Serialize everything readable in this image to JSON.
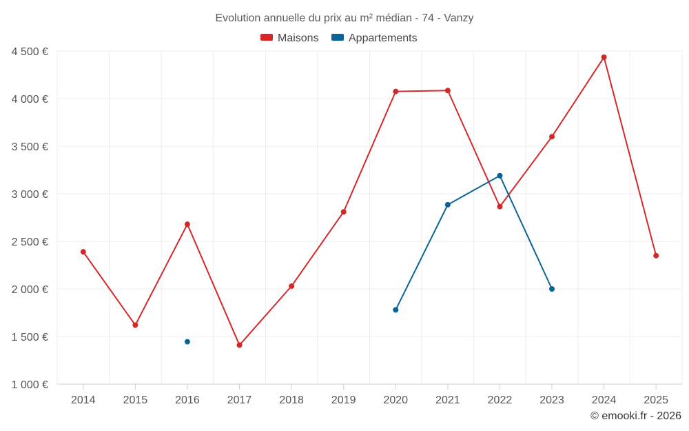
{
  "chart_data": {
    "type": "line",
    "title": "Evolution annuelle du prix au m² médian - 74 - Vanzy",
    "categories": [
      "2014",
      "2015",
      "2016",
      "2017",
      "2018",
      "2019",
      "2020",
      "2021",
      "2022",
      "2023",
      "2024",
      "2025"
    ],
    "y_ticks": [
      1000,
      1500,
      2000,
      2500,
      3000,
      3500,
      4000,
      4500
    ],
    "y_tick_labels": [
      "1 000 €",
      "1 500 €",
      "2 000 €",
      "2 500 €",
      "3 000 €",
      "3 500 €",
      "4 000 €",
      "4 500 €"
    ],
    "ylim": [
      1000,
      4500
    ],
    "legend_position": "top-center",
    "grid": true,
    "series": [
      {
        "name": "Maisons",
        "color": "#d62728",
        "values": [
          2390,
          1620,
          2680,
          1410,
          2030,
          2810,
          4075,
          4085,
          2865,
          3600,
          4435,
          2350
        ]
      },
      {
        "name": "Appartements",
        "color": "#0a6396",
        "values": [
          null,
          null,
          1445,
          null,
          null,
          null,
          1780,
          2885,
          3190,
          2000,
          null,
          null
        ]
      }
    ],
    "credit": "© emooki.fr - 2026"
  }
}
